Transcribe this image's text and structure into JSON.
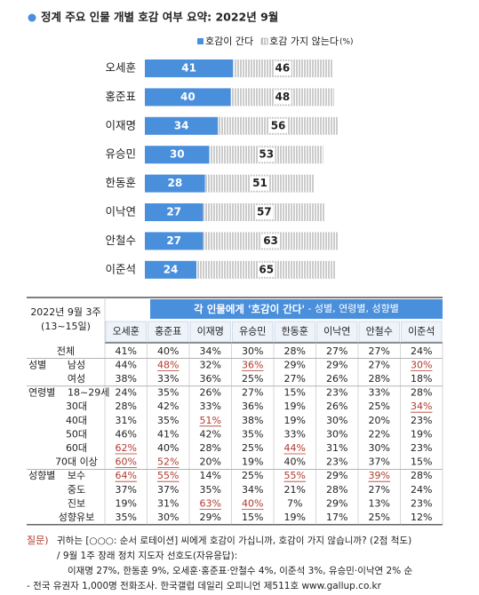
{
  "chart_data": {
    "type": "bar",
    "orientation": "horizontal",
    "stacked": true,
    "title": "정계 주요 인물 개별 호감 여부 요약: 2022년 9월",
    "unit": "(%)",
    "categories": [
      "오세훈",
      "홍준표",
      "이재명",
      "유승민",
      "한동훈",
      "이낙연",
      "안철수",
      "이준석"
    ],
    "series": [
      {
        "name": "호감이 간다",
        "color": "#4a8fdc",
        "values": [
          41,
          40,
          34,
          30,
          28,
          27,
          27,
          24
        ]
      },
      {
        "name": "호감 가지 않는다",
        "color": "#9a9a9a",
        "pattern": "hatch",
        "values": [
          46,
          48,
          56,
          53,
          51,
          57,
          63,
          65
        ]
      }
    ],
    "xlim": [
      0,
      100
    ]
  },
  "table": {
    "date": "2022년 9월 3주",
    "period": "(13~15일)",
    "title": "각 인물에게 '호감이 간다'",
    "subtitle": " - 성별, 연령별, 성향별",
    "columns": [
      "오세훈",
      "홍준표",
      "이재명",
      "유승민",
      "한동훈",
      "이낙연",
      "안철수",
      "이준석"
    ],
    "rows": [
      {
        "label": "전체",
        "values": [
          "41%",
          "40%",
          "34%",
          "30%",
          "28%",
          "27%",
          "27%",
          "24%"
        ]
      },
      {
        "group": "성별",
        "label": "남성",
        "values": [
          "44%",
          "48%",
          "32%",
          "36%",
          "29%",
          "29%",
          "27%",
          "30%"
        ]
      },
      {
        "label": "여성",
        "values": [
          "38%",
          "33%",
          "36%",
          "25%",
          "27%",
          "26%",
          "28%",
          "18%"
        ]
      },
      {
        "group": "연령별",
        "label": "18~29세",
        "values": [
          "24%",
          "35%",
          "26%",
          "27%",
          "15%",
          "23%",
          "33%",
          "28%"
        ]
      },
      {
        "label": "30대",
        "values": [
          "28%",
          "42%",
          "33%",
          "36%",
          "19%",
          "26%",
          "25%",
          "34%"
        ]
      },
      {
        "label": "40대",
        "values": [
          "31%",
          "35%",
          "51%",
          "38%",
          "19%",
          "30%",
          "20%",
          "23%"
        ]
      },
      {
        "label": "50대",
        "values": [
          "46%",
          "41%",
          "42%",
          "35%",
          "33%",
          "30%",
          "22%",
          "19%"
        ]
      },
      {
        "label": "60대",
        "values": [
          "62%",
          "40%",
          "28%",
          "25%",
          "44%",
          "31%",
          "30%",
          "23%"
        ]
      },
      {
        "label": "70대 이상",
        "values": [
          "60%",
          "52%",
          "20%",
          "19%",
          "40%",
          "23%",
          "37%",
          "15%"
        ]
      },
      {
        "group": "성향별",
        "label": "보수",
        "values": [
          "64%",
          "55%",
          "14%",
          "25%",
          "55%",
          "29%",
          "39%",
          "28%"
        ]
      },
      {
        "label": "중도",
        "values": [
          "37%",
          "37%",
          "35%",
          "34%",
          "21%",
          "28%",
          "27%",
          "24%"
        ]
      },
      {
        "label": "진보",
        "values": [
          "19%",
          "31%",
          "63%",
          "40%",
          "7%",
          "29%",
          "13%",
          "23%"
        ]
      },
      {
        "label": "성향유보",
        "values": [
          "35%",
          "30%",
          "29%",
          "15%",
          "19%",
          "17%",
          "25%",
          "12%"
        ]
      }
    ],
    "underlined": [
      [
        1,
        1
      ],
      [
        1,
        3
      ],
      [
        1,
        7
      ],
      [
        4,
        7
      ],
      [
        5,
        2
      ],
      [
        7,
        0
      ],
      [
        7,
        4
      ],
      [
        8,
        0
      ],
      [
        8,
        1
      ],
      [
        9,
        0
      ],
      [
        9,
        1
      ],
      [
        9,
        4
      ],
      [
        9,
        6
      ],
      [
        11,
        2
      ],
      [
        11,
        3
      ]
    ]
  },
  "footnote": {
    "label": "질문)",
    "lines": [
      "귀하는 [○○○: 순서 로테이션] 씨에게 호감이 가십니까, 호감이 가지 않습니까? (2점 척도)",
      "/ 9월 1주 장래 정치 지도자 선호도(자유응답):",
      "이재명 27%, 한동훈 9%, 오세훈·홍준표·안철수 4%, 이준석 3%, 유승민·이낙연 2% 순",
      "- 전국 유권자 1,000명 전화조사. 한국갤럽 데일리 오피니언 제511호 www.gallup.co.kr"
    ]
  }
}
